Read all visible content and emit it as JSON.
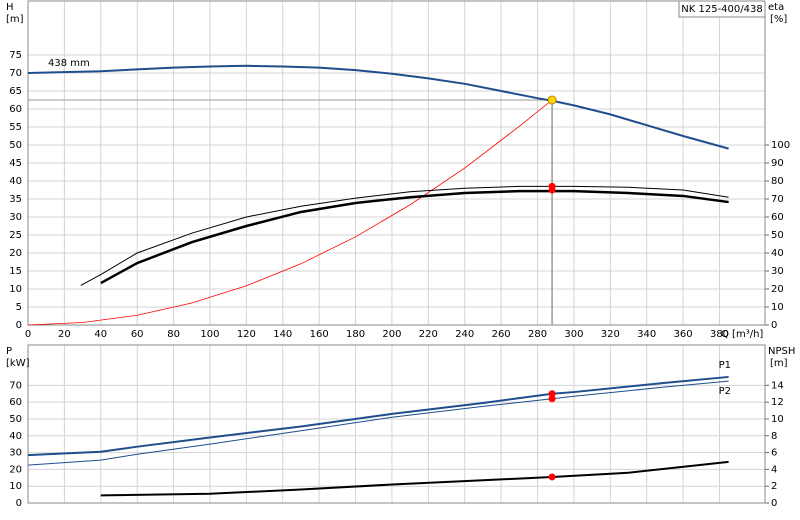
{
  "chart_data": [
    {
      "type": "line",
      "title": "NK 125-400/438",
      "ylabel": "H",
      "yunit": "[m]",
      "y2label": "eta",
      "y2unit": "[%]",
      "xlabel": "Q [m³/h]",
      "xlim": [
        0,
        405
      ],
      "xticks": [
        0,
        20,
        40,
        60,
        80,
        100,
        120,
        140,
        160,
        180,
        200,
        220,
        240,
        260,
        280,
        300,
        320,
        340,
        360,
        380
      ],
      "ylim": [
        0,
        90
      ],
      "yticks": [
        0,
        5,
        10,
        15,
        20,
        25,
        30,
        35,
        40,
        45,
        50,
        55,
        60,
        65,
        70,
        75
      ],
      "y2lim": [
        0,
        180
      ],
      "y2ticks": [
        0,
        10,
        20,
        30,
        40,
        50,
        60,
        70,
        80,
        90,
        100
      ],
      "grid": true,
      "series": [
        {
          "name": "438 mm",
          "color": "#1f4e8c",
          "line_width": 2,
          "axis": "y",
          "x": [
            0,
            40,
            60,
            80,
            100,
            120,
            140,
            160,
            180,
            200,
            220,
            240,
            260,
            280,
            288,
            300,
            320,
            340,
            360,
            385
          ],
          "values": [
            70,
            70.5,
            71,
            71.5,
            71.8,
            72,
            71.8,
            71.5,
            70.8,
            69.8,
            68.5,
            67,
            65,
            63,
            62.3,
            61,
            58.5,
            55.5,
            52.5,
            49
          ]
        },
        {
          "color": "#ff0000",
          "line_width": 0.8,
          "axis": "y",
          "x": [
            0,
            30,
            60,
            90,
            120,
            150,
            180,
            210,
            240,
            270,
            288
          ],
          "values": [
            0,
            0.7,
            2.7,
            6.1,
            10.9,
            17,
            24.5,
            33.4,
            43.6,
            55.2,
            62.5
          ]
        },
        {
          "color": "#000000",
          "line_width": 1,
          "axis": "y2",
          "x": [
            29,
            40,
            60,
            90,
            120,
            150,
            180,
            210,
            240,
            270,
            300,
            330,
            360,
            385
          ],
          "values": [
            22,
            28,
            40,
            51,
            60,
            66,
            70.5,
            74,
            76,
            77,
            77,
            76.5,
            75,
            71
          ]
        },
        {
          "color": "#000000",
          "line_width": 2.5,
          "axis": "y2",
          "x": [
            40,
            60,
            90,
            120,
            150,
            180,
            210,
            240,
            270,
            300,
            330,
            360,
            385
          ],
          "values": [
            23.3,
            34.4,
            46,
            55,
            62.8,
            67.8,
            71,
            73.3,
            74.4,
            74.4,
            73.3,
            71.7,
            68.3
          ]
        }
      ],
      "operating_point": {
        "x": 288,
        "y": 62.5,
        "color": "#ffd700"
      },
      "markers": [
        {
          "x": 288,
          "y": 77,
          "axis": "y2",
          "color": "#ff0000"
        },
        {
          "x": 288,
          "y": 75,
          "axis": "y2",
          "color": "#ff0000"
        }
      ]
    },
    {
      "type": "line",
      "ylabel": "P",
      "yunit": "[kW]",
      "y2label": "NPSH",
      "y2unit": "[m]",
      "xlim": [
        0,
        405
      ],
      "xticks": [
        0,
        20,
        40,
        60,
        80,
        100,
        120,
        140,
        160,
        180,
        200,
        220,
        240,
        260,
        280,
        300,
        320,
        340,
        360,
        380
      ],
      "ylim": [
        0,
        94
      ],
      "yticks": [
        0,
        10,
        20,
        30,
        40,
        50,
        60,
        70
      ],
      "y2lim": [
        0,
        18.8
      ],
      "y2ticks": [
        0,
        2,
        4,
        6,
        8,
        10,
        12,
        14
      ],
      "grid": true,
      "series": [
        {
          "name": "P1",
          "color": "#1f4e8c",
          "line_width": 2,
          "axis": "y",
          "x": [
            0,
            40,
            60,
            100,
            150,
            200,
            250,
            288,
            300,
            350,
            385
          ],
          "values": [
            28.5,
            30.5,
            33.5,
            39,
            45.5,
            53,
            59.5,
            65,
            66,
            71.5,
            75
          ]
        },
        {
          "name": "P2",
          "color": "#1f4e8c",
          "line_width": 1,
          "axis": "y",
          "x": [
            0,
            40,
            60,
            100,
            150,
            200,
            250,
            288,
            300,
            350,
            385
          ],
          "values": [
            22.5,
            25.5,
            29,
            35,
            43,
            51,
            57.5,
            62,
            63.5,
            69,
            72.5
          ]
        },
        {
          "color": "#000000",
          "line_width": 2,
          "axis": "y2",
          "x": [
            40,
            100,
            150,
            200,
            250,
            288,
            330,
            385
          ],
          "values": [
            0.9,
            1.1,
            1.6,
            2.2,
            2.7,
            3.1,
            3.6,
            4.9
          ]
        }
      ],
      "markers": [
        {
          "x": 288,
          "y": 65,
          "axis": "y",
          "color": "#ff0000"
        },
        {
          "x": 288,
          "y": 62,
          "axis": "y",
          "color": "#ff0000"
        },
        {
          "x": 288,
          "y": 3.1,
          "axis": "y2",
          "color": "#ff0000"
        }
      ]
    }
  ]
}
